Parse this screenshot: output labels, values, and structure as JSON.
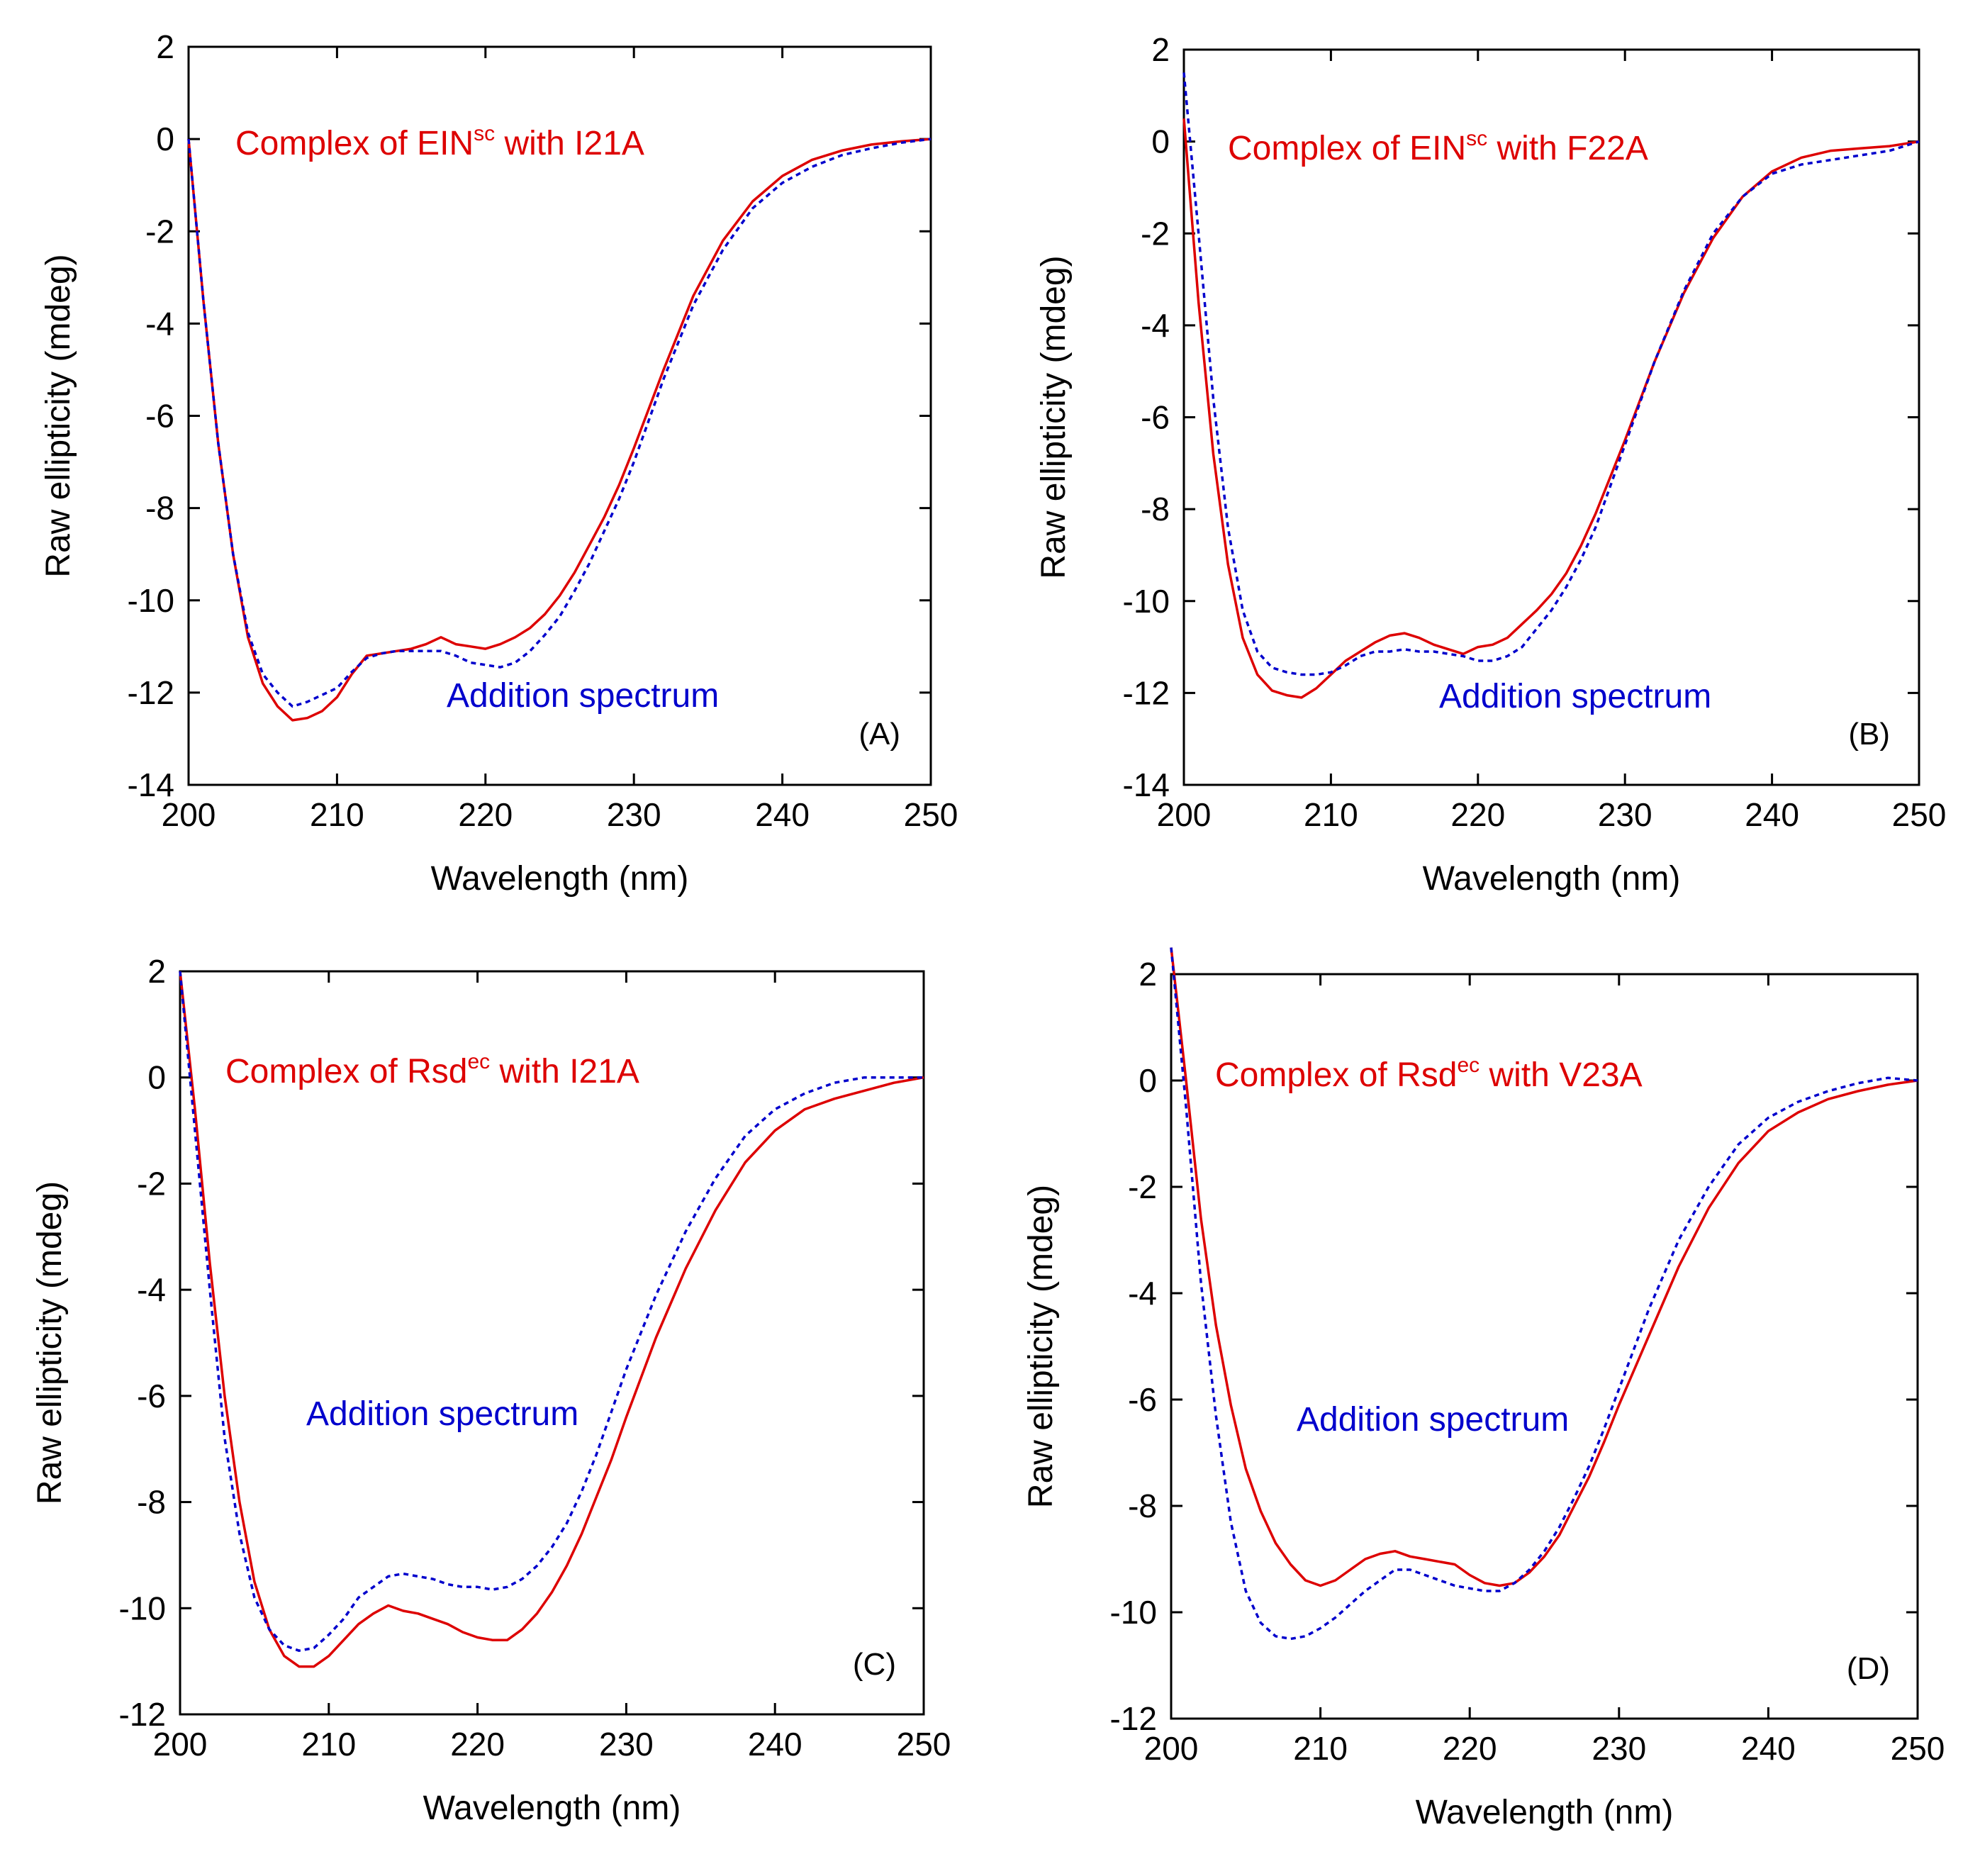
{
  "colors": {
    "complex": "#dd0000",
    "addition": "#0000cc",
    "axis": "#000000"
  },
  "chart_data": [
    {
      "type": "line",
      "panel_label": "(A)",
      "xlabel": "Wavelength (nm)",
      "ylabel": "Raw ellipticity (mdeg)",
      "xlim": [
        200,
        250
      ],
      "ylim": [
        -14,
        2
      ],
      "xticks": [
        200,
        210,
        220,
        230,
        240,
        250
      ],
      "yticks": [
        2,
        0,
        -2,
        -4,
        -6,
        -8,
        -10,
        -12,
        -14
      ],
      "xtick_labels": [
        "200",
        "210",
        "220",
        "230",
        "240",
        "250"
      ],
      "ytick_labels": [
        "2",
        "0",
        "-2",
        "-4",
        "-6",
        "-8",
        "-10",
        "-12",
        "-14"
      ],
      "annotations": {
        "complex": {
          "prefix": "Complex of EIN",
          "superscript": "sc",
          "suffix": " with I21A"
        },
        "addition": "Addition spectrum"
      },
      "series": [
        {
          "name": "Complex",
          "style": "solid",
          "x": [
            200,
            201,
            202,
            203,
            204,
            205,
            206,
            207,
            208,
            209,
            210,
            211,
            212,
            213,
            214,
            215,
            216,
            217,
            218,
            219,
            220,
            221,
            222,
            223,
            224,
            225,
            226,
            227,
            228,
            229,
            230,
            232,
            234,
            236,
            238,
            240,
            242,
            244,
            246,
            248,
            250
          ],
          "y": [
            0,
            -3.5,
            -6.6,
            -9.0,
            -10.8,
            -11.8,
            -12.3,
            -12.6,
            -12.55,
            -12.4,
            -12.1,
            -11.6,
            -11.2,
            -11.15,
            -11.1,
            -11.05,
            -10.95,
            -10.8,
            -10.95,
            -11.0,
            -11.05,
            -10.95,
            -10.8,
            -10.6,
            -10.3,
            -9.9,
            -9.4,
            -8.8,
            -8.2,
            -7.5,
            -6.7,
            -5.0,
            -3.4,
            -2.2,
            -1.35,
            -0.8,
            -0.45,
            -0.25,
            -0.12,
            -0.05,
            0
          ]
        },
        {
          "name": "Addition spectrum",
          "style": "dotted",
          "x": [
            200,
            201,
            202,
            203,
            204,
            205,
            206,
            207,
            208,
            209,
            210,
            211,
            212,
            213,
            214,
            215,
            216,
            217,
            218,
            219,
            220,
            221,
            222,
            223,
            224,
            225,
            226,
            227,
            228,
            229,
            230,
            232,
            234,
            236,
            238,
            240,
            242,
            244,
            246,
            248,
            250
          ],
          "y": [
            0,
            -3.5,
            -6.6,
            -9.0,
            -10.7,
            -11.6,
            -12.0,
            -12.3,
            -12.2,
            -12.05,
            -11.9,
            -11.55,
            -11.25,
            -11.15,
            -11.1,
            -11.1,
            -11.1,
            -11.1,
            -11.2,
            -11.35,
            -11.4,
            -11.45,
            -11.35,
            -11.1,
            -10.75,
            -10.35,
            -9.8,
            -9.2,
            -8.5,
            -7.8,
            -7.0,
            -5.2,
            -3.6,
            -2.4,
            -1.5,
            -0.95,
            -0.6,
            -0.35,
            -0.2,
            -0.08,
            0
          ]
        }
      ]
    },
    {
      "type": "line",
      "panel_label": "(B)",
      "xlabel": "Wavelength (nm)",
      "ylabel": "Raw ellipticity (mdeg)",
      "xlim": [
        200,
        250
      ],
      "ylim": [
        -14,
        2
      ],
      "xticks": [
        200,
        210,
        220,
        230,
        240,
        250
      ],
      "yticks": [
        2,
        0,
        -2,
        -4,
        -6,
        -8,
        -10,
        -12,
        -14
      ],
      "xtick_labels": [
        "200",
        "210",
        "220",
        "230",
        "240",
        "250"
      ],
      "ytick_labels": [
        "2",
        "0",
        "-2",
        "-4",
        "-6",
        "-8",
        "-10",
        "-12",
        "-14"
      ],
      "annotations": {
        "complex": {
          "prefix": "Complex of EIN",
          "superscript": "sc",
          "suffix": " with F22A"
        },
        "addition": "Addition spectrum"
      },
      "series": [
        {
          "name": "Complex",
          "style": "solid",
          "x": [
            200,
            201,
            202,
            203,
            204,
            205,
            206,
            207,
            208,
            209,
            210,
            211,
            212,
            213,
            214,
            215,
            216,
            217,
            218,
            219,
            220,
            221,
            222,
            223,
            224,
            225,
            226,
            227,
            228,
            229,
            230,
            232,
            234,
            236,
            238,
            240,
            242,
            244,
            246,
            248,
            250
          ],
          "y": [
            0.5,
            -3.5,
            -6.8,
            -9.2,
            -10.8,
            -11.6,
            -11.95,
            -12.05,
            -12.1,
            -11.9,
            -11.6,
            -11.3,
            -11.1,
            -10.9,
            -10.75,
            -10.7,
            -10.8,
            -10.95,
            -11.05,
            -11.15,
            -11.0,
            -10.95,
            -10.8,
            -10.5,
            -10.2,
            -9.85,
            -9.4,
            -8.8,
            -8.1,
            -7.3,
            -6.5,
            -4.8,
            -3.3,
            -2.1,
            -1.2,
            -0.65,
            -0.35,
            -0.2,
            -0.15,
            -0.1,
            0
          ]
        },
        {
          "name": "Addition spectrum",
          "style": "dotted",
          "x": [
            200,
            201,
            202,
            203,
            204,
            205,
            206,
            207,
            208,
            209,
            210,
            211,
            212,
            213,
            214,
            215,
            216,
            217,
            218,
            219,
            220,
            221,
            222,
            223,
            224,
            225,
            226,
            227,
            228,
            229,
            230,
            232,
            234,
            236,
            238,
            240,
            242,
            244,
            246,
            248,
            250
          ],
          "y": [
            1.5,
            -2.0,
            -5.6,
            -8.4,
            -10.2,
            -11.1,
            -11.45,
            -11.55,
            -11.6,
            -11.6,
            -11.55,
            -11.4,
            -11.2,
            -11.1,
            -11.1,
            -11.05,
            -11.1,
            -11.1,
            -11.15,
            -11.2,
            -11.3,
            -11.3,
            -11.2,
            -11.0,
            -10.6,
            -10.2,
            -9.7,
            -9.1,
            -8.4,
            -7.5,
            -6.6,
            -4.8,
            -3.25,
            -2.0,
            -1.2,
            -0.7,
            -0.5,
            -0.4,
            -0.3,
            -0.2,
            0
          ]
        }
      ]
    },
    {
      "type": "line",
      "panel_label": "(C)",
      "xlabel": "Wavelength (nm)",
      "ylabel": "Raw ellipticity (mdeg)",
      "xlim": [
        200,
        250
      ],
      "ylim": [
        -12,
        2
      ],
      "xticks": [
        200,
        210,
        220,
        230,
        240,
        250
      ],
      "yticks": [
        2,
        0,
        -2,
        -4,
        -6,
        -8,
        -10,
        -12
      ],
      "xtick_labels": [
        "200",
        "210",
        "220",
        "230",
        "240",
        "250"
      ],
      "ytick_labels": [
        "2",
        "0",
        "-2",
        "-4",
        "-6",
        "-8",
        "-10",
        "-12"
      ],
      "annotations": {
        "complex": {
          "prefix": "Complex of Rsd",
          "superscript": "ec",
          "suffix": " with I21A"
        },
        "addition": "Addition spectrum"
      },
      "series": [
        {
          "name": "Complex",
          "style": "solid",
          "x": [
            200,
            201,
            202,
            203,
            204,
            205,
            206,
            207,
            208,
            209,
            210,
            211,
            212,
            213,
            214,
            215,
            216,
            217,
            218,
            219,
            220,
            221,
            222,
            223,
            224,
            225,
            226,
            227,
            228,
            229,
            230,
            232,
            234,
            236,
            238,
            240,
            242,
            244,
            246,
            248,
            250
          ],
          "y": [
            2,
            -0.6,
            -3.5,
            -6.0,
            -8.0,
            -9.5,
            -10.4,
            -10.9,
            -11.1,
            -11.1,
            -10.9,
            -10.6,
            -10.3,
            -10.1,
            -9.95,
            -10.05,
            -10.1,
            -10.2,
            -10.3,
            -10.45,
            -10.55,
            -10.6,
            -10.6,
            -10.4,
            -10.1,
            -9.7,
            -9.2,
            -8.6,
            -7.9,
            -7.2,
            -6.4,
            -4.9,
            -3.6,
            -2.5,
            -1.6,
            -1.0,
            -0.6,
            -0.4,
            -0.25,
            -0.1,
            0
          ]
        },
        {
          "name": "Addition spectrum",
          "style": "dotted",
          "x": [
            200,
            201,
            202,
            203,
            204,
            205,
            206,
            207,
            208,
            209,
            210,
            211,
            212,
            213,
            214,
            215,
            216,
            217,
            218,
            219,
            220,
            221,
            222,
            223,
            224,
            225,
            226,
            227,
            228,
            229,
            230,
            232,
            234,
            236,
            238,
            240,
            242,
            244,
            246,
            248,
            250
          ],
          "y": [
            2,
            -1.0,
            -4.0,
            -6.8,
            -8.6,
            -9.8,
            -10.4,
            -10.7,
            -10.8,
            -10.75,
            -10.5,
            -10.2,
            -9.8,
            -9.6,
            -9.4,
            -9.35,
            -9.4,
            -9.45,
            -9.55,
            -9.6,
            -9.6,
            -9.65,
            -9.6,
            -9.45,
            -9.2,
            -8.85,
            -8.4,
            -7.8,
            -7.1,
            -6.3,
            -5.5,
            -4.1,
            -2.9,
            -1.9,
            -1.1,
            -0.6,
            -0.3,
            -0.1,
            0,
            0,
            0
          ]
        }
      ]
    },
    {
      "type": "line",
      "panel_label": "(D)",
      "xlabel": "Wavelength (nm)",
      "ylabel": "Raw ellipticity (mdeg)",
      "xlim": [
        200,
        250
      ],
      "ylim": [
        -12,
        2
      ],
      "xticks": [
        200,
        210,
        220,
        230,
        240,
        250
      ],
      "yticks": [
        2,
        0,
        -2,
        -4,
        -6,
        -8,
        -10,
        -12
      ],
      "xtick_labels": [
        "200",
        "210",
        "220",
        "230",
        "240",
        "250"
      ],
      "ytick_labels": [
        "2",
        "0",
        "-2",
        "-4",
        "-6",
        "-8",
        "-10",
        "-12"
      ],
      "annotations": {
        "complex": {
          "prefix": "Complex of Rsd",
          "superscript": "ec",
          "suffix": " with V23A"
        },
        "addition": "Addition spectrum"
      },
      "series": [
        {
          "name": "Complex",
          "style": "solid",
          "x": [
            200,
            201,
            202,
            203,
            204,
            205,
            206,
            207,
            208,
            209,
            210,
            211,
            212,
            213,
            214,
            215,
            216,
            217,
            218,
            219,
            220,
            221,
            222,
            223,
            224,
            225,
            226,
            227,
            228,
            229,
            230,
            232,
            234,
            236,
            238,
            240,
            242,
            244,
            246,
            248,
            250
          ],
          "y": [
            2.5,
            0,
            -2.6,
            -4.6,
            -6.1,
            -7.3,
            -8.1,
            -8.7,
            -9.1,
            -9.4,
            -9.5,
            -9.4,
            -9.2,
            -9.0,
            -8.9,
            -8.85,
            -8.95,
            -9.0,
            -9.05,
            -9.1,
            -9.3,
            -9.45,
            -9.5,
            -9.45,
            -9.25,
            -8.95,
            -8.55,
            -8.0,
            -7.45,
            -6.8,
            -6.1,
            -4.8,
            -3.5,
            -2.4,
            -1.55,
            -0.95,
            -0.6,
            -0.35,
            -0.2,
            -0.08,
            0
          ]
        },
        {
          "name": "Addition spectrum",
          "style": "dotted",
          "x": [
            200,
            201,
            202,
            203,
            204,
            205,
            206,
            207,
            208,
            209,
            210,
            211,
            212,
            213,
            214,
            215,
            216,
            217,
            218,
            219,
            220,
            221,
            222,
            223,
            224,
            225,
            226,
            227,
            228,
            229,
            230,
            232,
            234,
            236,
            238,
            240,
            242,
            244,
            246,
            248,
            250
          ],
          "y": [
            2.5,
            -0.5,
            -3.8,
            -6.3,
            -8.3,
            -9.6,
            -10.2,
            -10.45,
            -10.5,
            -10.45,
            -10.3,
            -10.1,
            -9.85,
            -9.6,
            -9.4,
            -9.2,
            -9.2,
            -9.3,
            -9.4,
            -9.5,
            -9.55,
            -9.6,
            -9.6,
            -9.45,
            -9.2,
            -8.85,
            -8.4,
            -7.85,
            -7.25,
            -6.55,
            -5.8,
            -4.3,
            -3.0,
            -2.0,
            -1.2,
            -0.7,
            -0.4,
            -0.2,
            -0.05,
            0.05,
            0
          ]
        }
      ]
    }
  ]
}
